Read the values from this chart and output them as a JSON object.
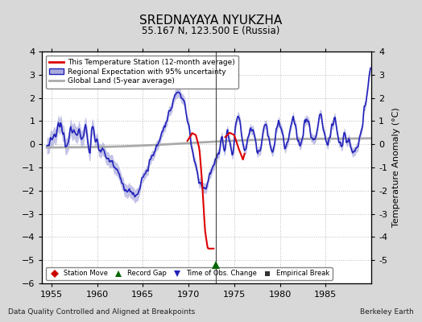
{
  "title": "SREDNAYAYA NYUKZHA",
  "subtitle": "55.167 N, 123.500 E (Russia)",
  "ylabel": "Temperature Anomaly (°C)",
  "xlabel_bottom": "Data Quality Controlled and Aligned at Breakpoints",
  "xlabel_right": "Berkeley Earth",
  "ylim": [
    -6,
    4
  ],
  "xlim": [
    1954,
    1990
  ],
  "xticks": [
    1955,
    1960,
    1965,
    1970,
    1975,
    1980,
    1985
  ],
  "yticks_right": [
    -5,
    -4,
    -3,
    -2,
    -1,
    0,
    1,
    2,
    3,
    4
  ],
  "yticks_left": [
    -6,
    -5,
    -4,
    -3,
    -2,
    -1,
    0,
    1,
    2,
    3,
    4
  ],
  "background_color": "#e0e0e0",
  "plot_bg_color": "#ffffff",
  "regional_color": "#2222bb",
  "regional_fill_color": "#aaaadd",
  "station_color": "#dd0000",
  "global_color": "#aaaaaa",
  "global_linewidth": 2.0,
  "regional_linewidth": 1.2,
  "station_linewidth": 1.5,
  "vertical_line_x": 1973.0,
  "vertical_line_color": "#444444",
  "record_gap_x": 1973.0,
  "record_gap_y": -5.2,
  "legend_line1": "This Temperature Station (12-month average)",
  "legend_line2": "Regional Expectation with 95% uncertainty",
  "legend_line3": "Global Land (5-year average)",
  "marker_label1": "Station Move",
  "marker_label2": "Record Gap",
  "marker_label3": "Time of Obs. Change",
  "marker_label4": "Empirical Break"
}
